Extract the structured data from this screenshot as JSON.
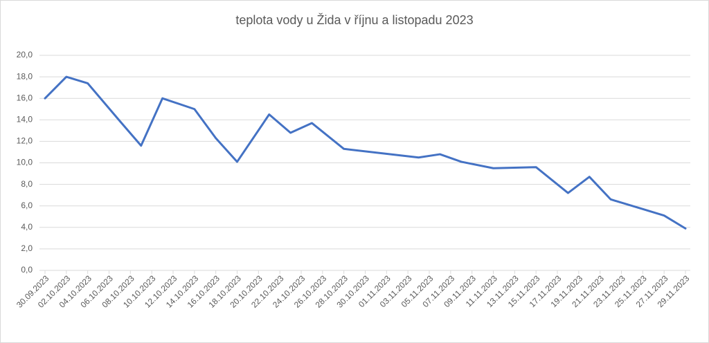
{
  "chart_data": {
    "type": "line",
    "title": "teplota vody u Žida v říjnu a listopadu 2023",
    "x": [
      "30.09.2023",
      "02.10.2023",
      "04.10.2023",
      "07.10.2023",
      "09.10.2023",
      "11.10.2023",
      "14.10.2023",
      "16.10.2023",
      "18.10.2023",
      "21.10.2023",
      "23.10.2023",
      "25.10.2023",
      "28.10.2023",
      "04.11.2023",
      "06.11.2023",
      "08.11.2023",
      "11.11.2023",
      "15.11.2023",
      "18.11.2023",
      "20.11.2023",
      "22.11.2023",
      "25.11.2023",
      "27.11.2023",
      "29.11.2023"
    ],
    "values": [
      16.0,
      18.0,
      17.4,
      13.9,
      11.6,
      16.0,
      15.0,
      12.3,
      10.1,
      14.5,
      12.8,
      13.7,
      11.3,
      10.5,
      10.8,
      10.1,
      9.5,
      9.6,
      7.2,
      8.7,
      6.6,
      5.7,
      5.1,
      3.9
    ],
    "color": "#4472c4",
    "xlim": [
      "30.09.2023",
      "29.11.2023"
    ],
    "xticks": [
      "30.09.2023",
      "02.10.2023",
      "04.10.2023",
      "06.10.2023",
      "08.10.2023",
      "10.10.2023",
      "12.10.2023",
      "14.10.2023",
      "16.10.2023",
      "18.10.2023",
      "20.10.2023",
      "22.10.2023",
      "24.10.2023",
      "26.10.2023",
      "28.10.2023",
      "30.10.2023",
      "01.11.2023",
      "03.11.2023",
      "05.11.2023",
      "07.11.2023",
      "09.11.2023",
      "11.11.2023",
      "13.11.2023",
      "15.11.2023",
      "17.11.2023",
      "19.11.2023",
      "21.11.2023",
      "23.11.2023",
      "25.11.2023",
      "27.11.2023",
      "29.11.2023"
    ],
    "ylim": [
      0,
      20
    ],
    "yticks": [
      {
        "value": 0,
        "label": "0,0"
      },
      {
        "value": 2,
        "label": "2,0"
      },
      {
        "value": 4,
        "label": "4,0"
      },
      {
        "value": 6,
        "label": "6,0"
      },
      {
        "value": 8,
        "label": "8,0"
      },
      {
        "value": 10,
        "label": "10,0"
      },
      {
        "value": 12,
        "label": "12,0"
      },
      {
        "value": 14,
        "label": "14,0"
      },
      {
        "value": 16,
        "label": "16,0"
      },
      {
        "value": 18,
        "label": "18,0"
      },
      {
        "value": 20,
        "label": "20,0"
      }
    ],
    "grid": true
  }
}
